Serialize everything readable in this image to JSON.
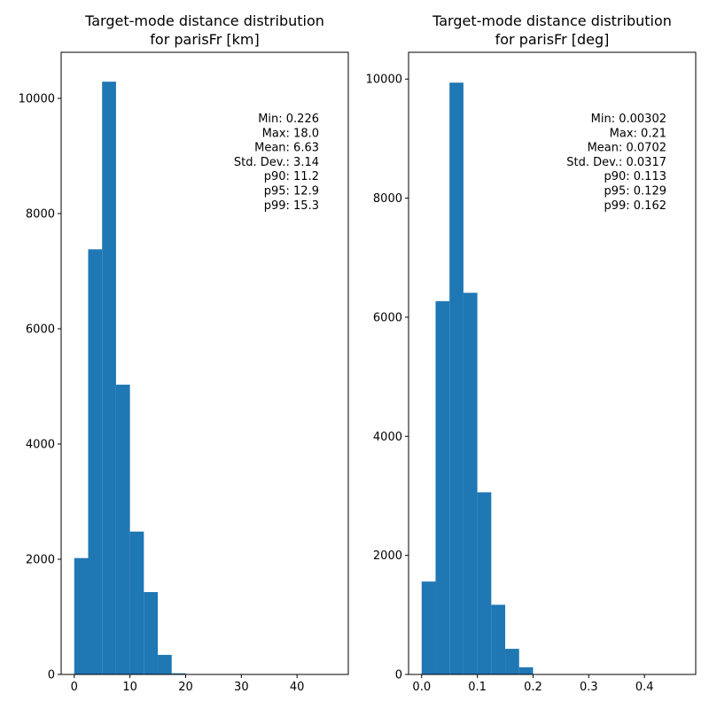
{
  "chart_data": [
    {
      "type": "bar",
      "title": "Target-mode distance distribution\nfor parisFr [km]",
      "title_lines": [
        "Target-mode distance distribution",
        "for parisFr [km]"
      ],
      "xlabel": "",
      "ylabel": "",
      "xlim": [
        -2.35,
        49.2
      ],
      "ylim": [
        0,
        10800
      ],
      "xticks": [
        0,
        10,
        20,
        30,
        40
      ],
      "xtick_labels": [
        "0",
        "10",
        "20",
        "30",
        "40"
      ],
      "yticks": [
        0,
        2000,
        4000,
        6000,
        8000,
        10000
      ],
      "ytick_labels": [
        "0",
        "2000",
        "4000",
        "6000",
        "8000",
        "10000"
      ],
      "bin_edges": [
        0.0,
        2.5,
        5.0,
        7.5,
        10.0,
        12.5,
        15.0,
        17.5,
        20.0,
        22.5,
        25.0,
        27.5,
        30.0,
        32.5,
        35.0,
        37.5,
        40.0,
        42.5,
        45.0,
        47.0
      ],
      "values": [
        2020,
        7380,
        10290,
        5030,
        2480,
        1430,
        340,
        20,
        0,
        0,
        0,
        0,
        0,
        0,
        0,
        0,
        0,
        0,
        0
      ],
      "grid": false,
      "color": "#1f77b4",
      "annotation": [
        "Min: 0.226",
        "Max: 18.0",
        "Mean: 6.63",
        "Std. Dev.: 3.14",
        "p90: 11.2",
        "p95: 12.9",
        "p99: 15.3"
      ]
    },
    {
      "type": "bar",
      "title": "Target-mode distance distribution\nfor parisFr [deg]",
      "title_lines": [
        "Target-mode distance distribution",
        "for parisFr [deg]"
      ],
      "xlabel": "",
      "ylabel": "",
      "xlim": [
        -0.0235,
        0.492
      ],
      "ylim": [
        0,
        10450
      ],
      "xticks": [
        0.0,
        0.1,
        0.2,
        0.3,
        0.4
      ],
      "xtick_labels": [
        "0.0",
        "0.1",
        "0.2",
        "0.3",
        "0.4"
      ],
      "yticks": [
        0,
        2000,
        4000,
        6000,
        8000,
        10000
      ],
      "ytick_labels": [
        "0",
        "2000",
        "4000",
        "6000",
        "8000",
        "10000"
      ],
      "bin_edges": [
        0.0,
        0.025,
        0.05,
        0.075,
        0.1,
        0.125,
        0.15,
        0.175,
        0.2,
        0.225,
        0.25,
        0.275,
        0.3,
        0.325,
        0.35,
        0.375,
        0.4,
        0.425,
        0.45,
        0.47
      ],
      "values": [
        1560,
        6270,
        9940,
        6410,
        3060,
        1170,
        430,
        120,
        0,
        0,
        0,
        0,
        0,
        0,
        0,
        0,
        0,
        0,
        0
      ],
      "grid": false,
      "color": "#1f77b4",
      "annotation": [
        "Min: 0.00302",
        "Max: 0.21",
        "Mean: 0.0702",
        "Std. Dev.: 0.0317",
        "p90: 0.113",
        "p95: 0.129",
        "p99: 0.162"
      ]
    }
  ]
}
